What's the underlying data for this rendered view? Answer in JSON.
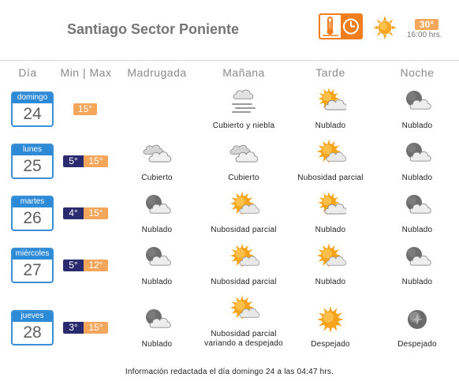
{
  "title": "Santiago Sector Poniente",
  "current": {
    "temp": "30°",
    "time": "16:00 hrs.",
    "icon": "sun-icon"
  },
  "columns": {
    "dia": "Día",
    "minmax": "Min | Max",
    "madrugada": "Madrugada",
    "manana": "Mañana",
    "tarde": "Tarde",
    "noche": "Noche"
  },
  "days": [
    {
      "weekday": "domingo",
      "day": "24",
      "min": "",
      "max": "15°",
      "madrugada": null,
      "manana": {
        "icon": "cloudy-fog-icon",
        "label": "Cubierto y niebla"
      },
      "tarde": {
        "icon": "partly-cloudy-sun-icon",
        "label": "Nublado"
      },
      "noche": {
        "icon": "cloudy-night-icon",
        "label": "Nublado"
      }
    },
    {
      "weekday": "lunes",
      "day": "25",
      "min": "5°",
      "max": "15°",
      "madrugada": {
        "icon": "overcast-icon",
        "label": "Cubierto"
      },
      "manana": {
        "icon": "overcast-icon",
        "label": "Cubierto"
      },
      "tarde": {
        "icon": "partly-sunny-icon",
        "label": "Nubosidad parcial"
      },
      "noche": {
        "icon": "cloudy-night-icon",
        "label": "Nublado"
      }
    },
    {
      "weekday": "martes",
      "day": "26",
      "min": "4°",
      "max": "15°",
      "madrugada": {
        "icon": "cloudy-night-icon",
        "label": "Nublado"
      },
      "manana": {
        "icon": "partly-sunny-icon",
        "label": "Nubosidad parcial"
      },
      "tarde": {
        "icon": "partly-cloudy-sun-icon",
        "label": "Nublado"
      },
      "noche": {
        "icon": "cloudy-night-icon",
        "label": "Nublado"
      }
    },
    {
      "weekday": "miércoles",
      "day": "27",
      "min": "5°",
      "max": "12°",
      "madrugada": {
        "icon": "cloudy-night-icon",
        "label": "Nublado"
      },
      "manana": {
        "icon": "partly-sunny-icon",
        "label": "Nubosidad parcial"
      },
      "tarde": {
        "icon": "partly-sunny-icon",
        "label": "Nublado"
      },
      "noche": {
        "icon": "cloudy-night-icon",
        "label": "Nublado"
      }
    },
    {
      "weekday": "jueves",
      "day": "28",
      "min": "3°",
      "max": "15°",
      "madrugada": {
        "icon": "cloudy-night-icon",
        "label": "Nublado"
      },
      "manana": {
        "icon": "partly-sunny-icon",
        "label": "Nubosidad parcial variando a despejado"
      },
      "tarde": {
        "icon": "sun-icon",
        "label": "Despejado"
      },
      "noche": {
        "icon": "clear-night-icon",
        "label": "Despejado"
      }
    }
  ],
  "footer": "Información redactada el día domingo 24 a las 04:47 hrs.",
  "colors": {
    "accent": "#f07e1d",
    "max_temp": "#f4a65a",
    "min_temp": "#2a2a6e",
    "calendar": "#2d8ad6"
  }
}
